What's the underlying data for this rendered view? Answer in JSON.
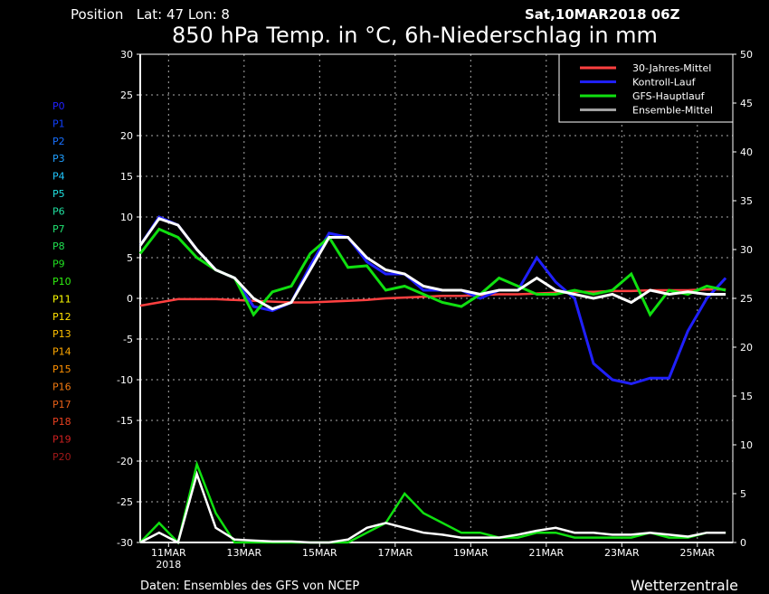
{
  "header": {
    "position": "Position   Lat: 47 Lon: 8",
    "run": "Sat,10MAR2018 06Z",
    "title": "850 hPa Temp. in °C, 6h-Niederschlag in mm"
  },
  "footer": {
    "source": "Daten: Ensembles des GFS von NCEP",
    "brand": "Wetterzentrale"
  },
  "members": [
    {
      "label": "P0",
      "color": "#2020ff"
    },
    {
      "label": "P1",
      "color": "#1040ff"
    },
    {
      "label": "P2",
      "color": "#1870ff"
    },
    {
      "label": "P3",
      "color": "#20a0ff"
    },
    {
      "label": "P4",
      "color": "#20c8ff"
    },
    {
      "label": "P5",
      "color": "#20e0e0"
    },
    {
      "label": "P6",
      "color": "#20e0a0"
    },
    {
      "label": "P7",
      "color": "#20e070"
    },
    {
      "label": "P8",
      "color": "#20e050"
    },
    {
      "label": "P9",
      "color": "#20e020"
    },
    {
      "label": "P10",
      "color": "#30f010"
    },
    {
      "label": "P11",
      "color": "#ffff00"
    },
    {
      "label": "P12",
      "color": "#ffe000"
    },
    {
      "label": "P13",
      "color": "#ffc000"
    },
    {
      "label": "P14",
      "color": "#ffa800"
    },
    {
      "label": "P15",
      "color": "#ff9000"
    },
    {
      "label": "P16",
      "color": "#f07810"
    },
    {
      "label": "P17",
      "color": "#e86018"
    },
    {
      "label": "P18",
      "color": "#e84020"
    },
    {
      "label": "P19",
      "color": "#d02020"
    },
    {
      "label": "P20",
      "color": "#a01818"
    }
  ],
  "chart_data": {
    "type": "line",
    "title": "850 hPa Temp. in °C, 6h-Niederschlag in mm",
    "x": [
      "10MAR 06Z",
      "10MAR 18Z",
      "11MAR 06Z",
      "11MAR 18Z",
      "12MAR 06Z",
      "12MAR 18Z",
      "13MAR 06Z",
      "13MAR 18Z",
      "14MAR 06Z",
      "14MAR 18Z",
      "15MAR 06Z",
      "15MAR 18Z",
      "16MAR 06Z",
      "16MAR 18Z",
      "17MAR 06Z",
      "17MAR 18Z",
      "18MAR 06Z",
      "18MAR 18Z",
      "19MAR 06Z",
      "19MAR 18Z",
      "20MAR 06Z",
      "20MAR 18Z",
      "21MAR 06Z",
      "21MAR 18Z",
      "22MAR 06Z",
      "22MAR 18Z",
      "23MAR 06Z",
      "23MAR 18Z",
      "24MAR 06Z",
      "24MAR 18Z",
      "25MAR 06Z",
      "25MAR 18Z"
    ],
    "x_ticks": [
      "11MAR",
      "13MAR",
      "15MAR",
      "17MAR",
      "19MAR",
      "21MAR",
      "23MAR",
      "25MAR"
    ],
    "x_tick_sub": "2018",
    "y_left": {
      "range": [
        -30,
        30
      ],
      "ticks": [
        30,
        25,
        20,
        15,
        10,
        5,
        0,
        -5,
        -10,
        -15,
        -20,
        -25,
        -30
      ]
    },
    "y_right": {
      "range": [
        0,
        50
      ],
      "ticks": [
        50,
        45,
        40,
        35,
        30,
        25,
        20,
        15,
        10,
        5,
        0
      ]
    },
    "grid": true,
    "legend_placement": "top-right",
    "series": [
      {
        "name": "30-Jahres-Mittel",
        "color": "#ff4040",
        "axis": "left",
        "values": [
          -0.9,
          -0.5,
          -0.1,
          -0.1,
          -0.1,
          -0.2,
          -0.3,
          -0.4,
          -0.5,
          -0.5,
          -0.4,
          -0.3,
          -0.2,
          0.0,
          0.1,
          0.2,
          0.3,
          0.3,
          0.4,
          0.5,
          0.5,
          0.6,
          0.7,
          0.8,
          0.8,
          0.9,
          0.9,
          1.0,
          1.0,
          1.0,
          1.1,
          1.1
        ]
      },
      {
        "name": "Kontroll-Lauf",
        "color": "#2020ff",
        "axis": "left",
        "values": [
          6.5,
          10.0,
          9.0,
          6.0,
          3.5,
          2.5,
          -1.0,
          -1.5,
          -0.5,
          4.0,
          8.0,
          7.5,
          4.5,
          3.0,
          3.0,
          1.0,
          1.0,
          1.0,
          0.0,
          1.0,
          1.0,
          5.0,
          2.0,
          0.0,
          -8.0,
          -10.0,
          -10.5,
          -9.8,
          -9.8,
          -4.0,
          0.0,
          2.5
        ]
      },
      {
        "name": "GFS-Hauptlauf",
        "color": "#10e010",
        "axis": "left",
        "values": [
          5.5,
          8.5,
          7.5,
          5.0,
          3.5,
          2.5,
          -2.0,
          0.8,
          1.5,
          5.5,
          7.5,
          3.8,
          4.0,
          1.0,
          1.5,
          0.5,
          -0.5,
          -1.0,
          0.5,
          2.5,
          1.5,
          0.5,
          0.5,
          1.0,
          0.5,
          1.0,
          3.0,
          -2.0,
          1.0,
          0.5,
          1.5,
          1.0
        ]
      },
      {
        "name": "Ensemble-Mittel",
        "color": "#ffffff",
        "legend_color": "#a0a0a0",
        "axis": "left",
        "values": [
          6.5,
          9.8,
          9.0,
          6.0,
          3.5,
          2.5,
          0.0,
          -1.3,
          -0.5,
          3.5,
          7.5,
          7.5,
          5.0,
          3.5,
          3.0,
          1.5,
          1.0,
          1.0,
          0.5,
          1.0,
          1.0,
          2.5,
          1.0,
          0.5,
          0.0,
          0.5,
          -0.5,
          1.0,
          0.5,
          0.8,
          0.5,
          0.5
        ]
      }
    ],
    "precip_series": [
      {
        "name": "GFS-Hauptlauf",
        "color": "#10e010",
        "axis": "right",
        "values": [
          0,
          2,
          0,
          8,
          3,
          0,
          0,
          0,
          0,
          0,
          0,
          0,
          1,
          2,
          5,
          3,
          2,
          1,
          1,
          0.5,
          0.5,
          1,
          1,
          0.5,
          0.5,
          0.5,
          0.5,
          1,
          0.5,
          0.5,
          1,
          1
        ]
      },
      {
        "name": "Ensemble-Mittel",
        "color": "#ffffff",
        "axis": "right",
        "values": [
          0,
          1,
          0,
          7,
          1.5,
          0.3,
          0.2,
          0.1,
          0.1,
          0,
          0,
          0.3,
          1.5,
          2.0,
          1.5,
          1.0,
          0.8,
          0.5,
          0.5,
          0.5,
          0.8,
          1.2,
          1.5,
          1.0,
          1.0,
          0.8,
          0.8,
          1.0,
          0.8,
          0.6,
          1.0,
          1.0
        ]
      }
    ]
  }
}
